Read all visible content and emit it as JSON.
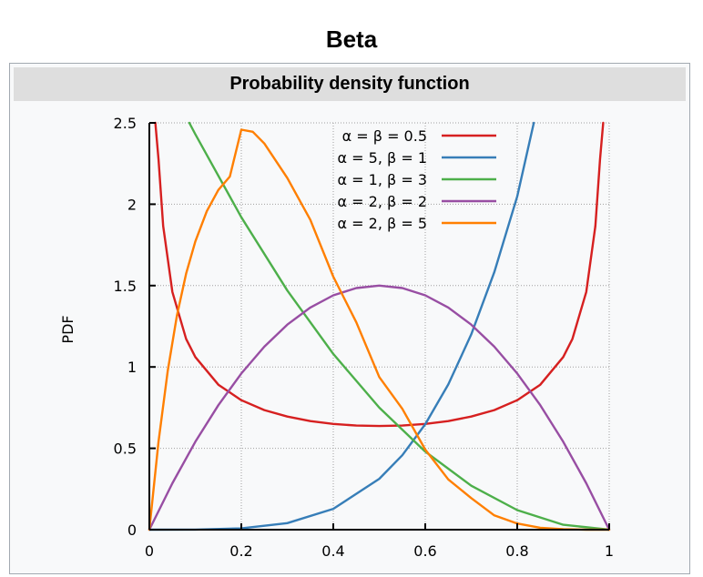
{
  "page": {
    "title": "Beta"
  },
  "infobox": {
    "header": "Probability density function"
  },
  "chart_data": {
    "type": "line",
    "title": "",
    "xlabel": "",
    "ylabel": "PDF",
    "xlim": [
      0,
      1
    ],
    "ylim": [
      0,
      2.5
    ],
    "xticks": [
      "0",
      "0.2",
      "0.4",
      "0.6",
      "0.8",
      "1"
    ],
    "yticks": [
      "0",
      "0.5",
      "1",
      "1.5",
      "2",
      "2.5"
    ],
    "xtick_values": [
      0,
      0.2,
      0.4,
      0.6,
      0.8,
      1
    ],
    "ytick_values": [
      0,
      0.5,
      1,
      1.5,
      2,
      2.5
    ],
    "grid": true,
    "legend_position": "top-center",
    "series": [
      {
        "name": "α = β = 0.5",
        "color": "#d62020",
        "x": [
          0.013,
          0.02,
          0.03,
          0.05,
          0.08,
          0.1,
          0.15,
          0.2,
          0.25,
          0.3,
          0.35,
          0.4,
          0.45,
          0.5,
          0.55,
          0.6,
          0.65,
          0.7,
          0.75,
          0.8,
          0.85,
          0.9,
          0.92,
          0.95,
          0.97,
          0.98,
          0.987
        ],
        "y": [
          2.5,
          2.274,
          1.866,
          1.461,
          1.172,
          1.061,
          0.891,
          0.796,
          0.735,
          0.695,
          0.667,
          0.65,
          0.64,
          0.637,
          0.64,
          0.65,
          0.667,
          0.695,
          0.735,
          0.796,
          0.891,
          1.061,
          1.172,
          1.461,
          1.866,
          2.274,
          2.5
        ]
      },
      {
        "name": "α = 5, β = 1",
        "color": "#377eb8",
        "x": [
          0,
          0.1,
          0.2,
          0.3,
          0.4,
          0.5,
          0.55,
          0.6,
          0.65,
          0.7,
          0.75,
          0.8,
          0.836
        ],
        "y": [
          0,
          0.0005,
          0.008,
          0.0405,
          0.128,
          0.3125,
          0.4575,
          0.648,
          0.8925,
          1.2005,
          1.582,
          2.048,
          2.5
        ]
      },
      {
        "name": "α = 1, β = 3",
        "color": "#4daf4a",
        "x": [
          0.087,
          0.1,
          0.2,
          0.3,
          0.4,
          0.5,
          0.6,
          0.7,
          0.8,
          0.9,
          1
        ],
        "y": [
          2.5,
          2.43,
          1.92,
          1.47,
          1.08,
          0.75,
          0.48,
          0.27,
          0.12,
          0.03,
          0
        ]
      },
      {
        "name": "α = 2, β = 2",
        "color": "#984ea3",
        "x": [
          0,
          0.05,
          0.1,
          0.15,
          0.2,
          0.25,
          0.3,
          0.35,
          0.4,
          0.45,
          0.5,
          0.55,
          0.6,
          0.65,
          0.7,
          0.75,
          0.8,
          0.85,
          0.9,
          0.95,
          1
        ],
        "y": [
          0,
          0.285,
          0.54,
          0.765,
          0.96,
          1.125,
          1.26,
          1.365,
          1.44,
          1.485,
          1.5,
          1.485,
          1.44,
          1.365,
          1.26,
          1.125,
          0.96,
          0.765,
          0.54,
          0.285,
          0
        ]
      },
      {
        "name": "α = 2, β = 5",
        "color": "#ff7f00",
        "x": [
          0,
          0.02,
          0.04,
          0.06,
          0.08,
          0.1,
          0.125,
          0.15,
          0.175,
          0.2,
          0.225,
          0.25,
          0.3,
          0.35,
          0.4,
          0.45,
          0.5,
          0.55,
          0.6,
          0.65,
          0.7,
          0.75,
          0.8,
          0.85,
          0.9,
          0.95,
          1
        ],
        "y": [
          0,
          0.542,
          0.976,
          1.316,
          1.574,
          1.771,
          1.957,
          2.088,
          2.17,
          2.458,
          2.445,
          2.373,
          2.161,
          1.904,
          1.555,
          1.274,
          0.938,
          0.743,
          0.492,
          0.309,
          0.194,
          0.088,
          0.038,
          0.012,
          0.003,
          0.0002,
          0
        ]
      }
    ]
  }
}
